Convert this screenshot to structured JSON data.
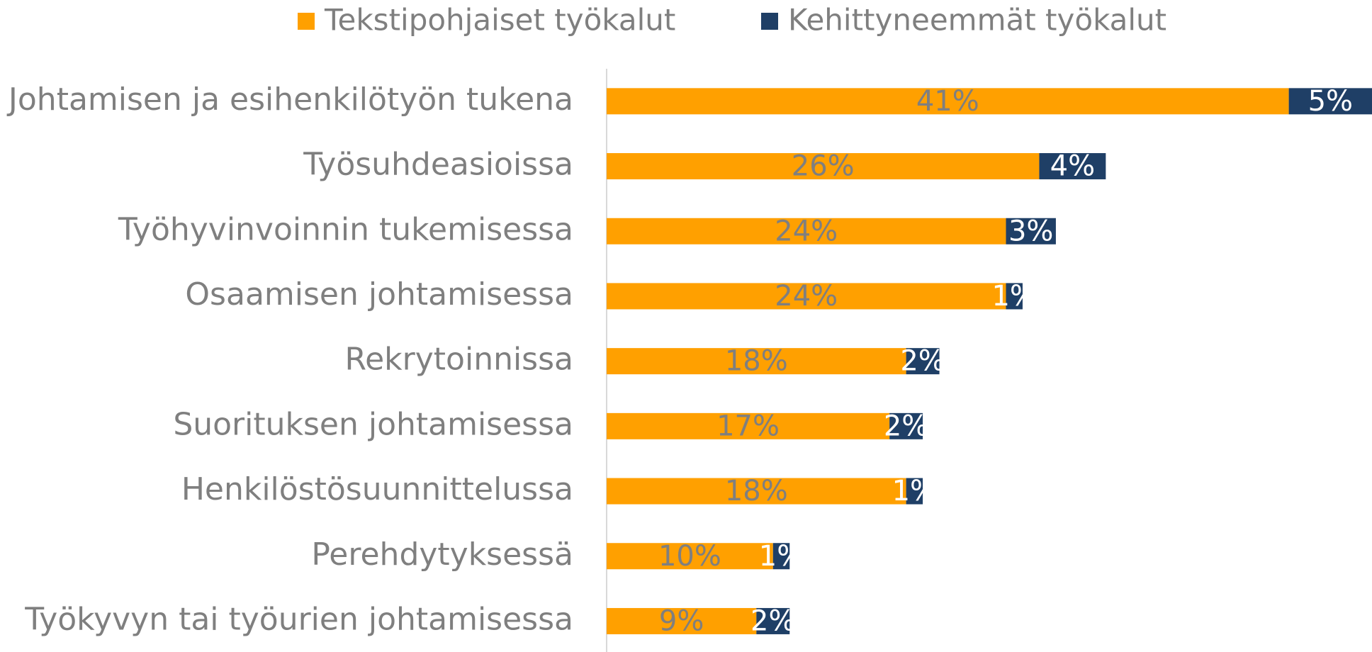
{
  "chart_data": {
    "type": "stacked_bar_horizontal",
    "categories": [
      "Johtamisen ja esihenkilötyön tukena",
      "Työsuhdeasioissa",
      "Työhyvinvoinnin tukemisessa",
      "Osaamisen johtamisessa",
      "Rekrytoinnissa",
      "Suorituksen johtamisessa",
      "Henkilöstösuunnittelussa",
      "Perehdytyksessä",
      "Työkyvyn tai työurien johtamisessa"
    ],
    "series": [
      {
        "name": "Tekstipohjaiset työkalut",
        "color": "#ffa000",
        "values": [
          41,
          26,
          24,
          24,
          18,
          17,
          18,
          10,
          9
        ],
        "value_labels": [
          "41%",
          "26%",
          "24%",
          "24%",
          "18%",
          "17%",
          "18%",
          "10%",
          "9%"
        ],
        "label_color": "#7f7f7f"
      },
      {
        "name": "Kehittyneemmät työkalut",
        "color": "#1f3f66",
        "values": [
          5,
          4,
          3,
          1,
          2,
          2,
          1,
          1,
          2
        ],
        "value_labels": [
          "5%",
          "4%",
          "3%",
          "1%",
          "2%",
          "2%",
          "1%",
          "1%",
          "2%"
        ],
        "label_color": "#ffffff"
      }
    ],
    "legend": "top"
  }
}
